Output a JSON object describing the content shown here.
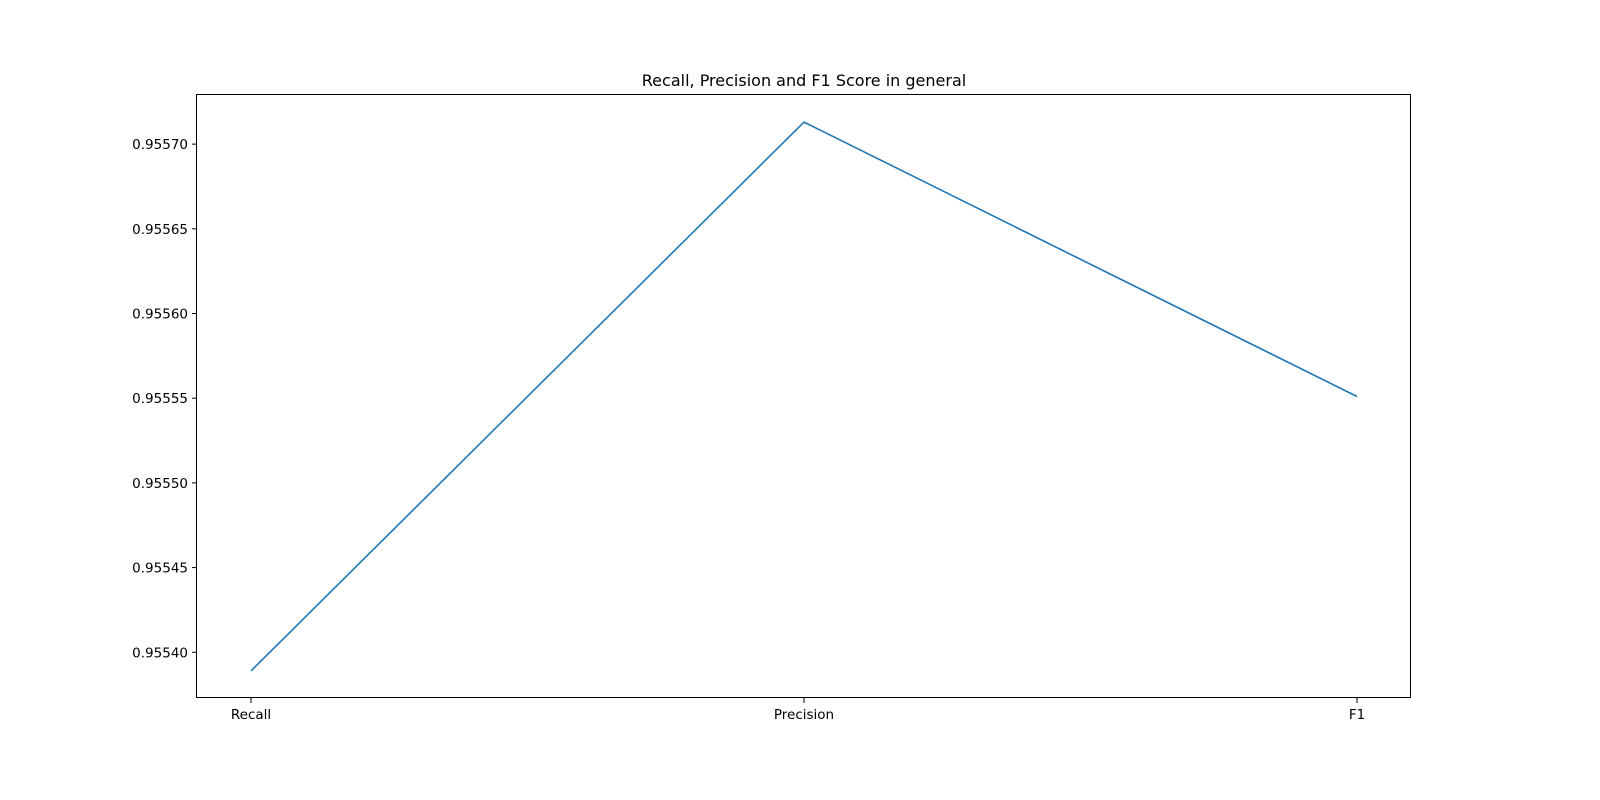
{
  "chart_data": {
    "type": "line",
    "title": "Recall, Precision and F1 Score in general",
    "xlabel": "",
    "ylabel": "",
    "categories": [
      "Recall",
      "Precision",
      "F1"
    ],
    "series": [
      {
        "values": [
          0.955389,
          0.955713,
          0.955551
        ],
        "color": "#1f77b4"
      }
    ],
    "y_ticks": [
      0.9554,
      0.95545,
      0.9555,
      0.95555,
      0.9556,
      0.95565,
      0.9557
    ],
    "y_tick_labels": [
      "0.95540",
      "0.95545",
      "0.95550",
      "0.95555",
      "0.95560",
      "0.95565",
      "0.95570"
    ],
    "ylim": [
      0.955373,
      0.955729
    ],
    "grid": false,
    "legend": "none"
  }
}
